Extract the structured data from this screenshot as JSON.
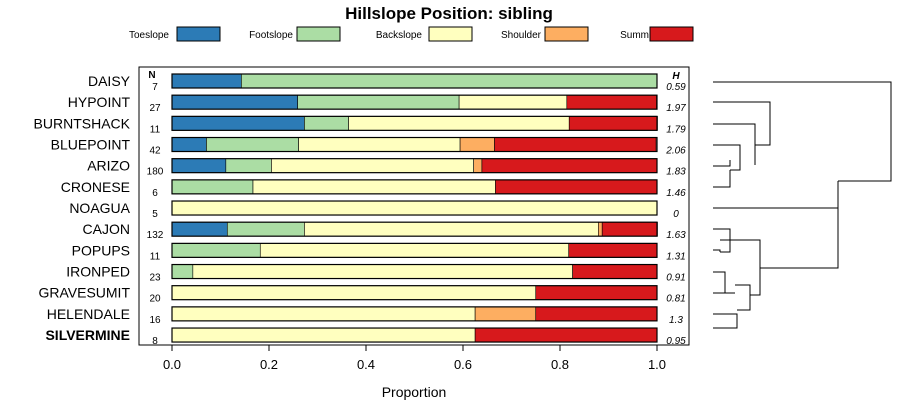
{
  "chart_data": {
    "type": "bar",
    "orientation": "horizontal",
    "stacked": true,
    "title": "Hillslope Position: sibling",
    "xlabel": "Proportion",
    "xlim": [
      0,
      1
    ],
    "xticks": [
      "0.0",
      "0.2",
      "0.4",
      "0.6",
      "0.8",
      "1.0"
    ],
    "n_header": "N",
    "h_header": "H",
    "legend_position": "top",
    "series": [
      {
        "name": "Toeslope",
        "color": "#2c7bb6"
      },
      {
        "name": "Footslope",
        "color": "#abdda4"
      },
      {
        "name": "Backslope",
        "color": "#ffffbf"
      },
      {
        "name": "Shoulder",
        "color": "#fdae61"
      },
      {
        "name": "Summit",
        "color": "#d7191c"
      }
    ],
    "categories": [
      "DAISY",
      "HYPOINT",
      "BURNTSHACK",
      "BLUEPOINT",
      "ARIZO",
      "CRONESE",
      "NOAGUA",
      "CAJON",
      "POPUPS",
      "IRONPED",
      "GRAVESUMIT",
      "HELENDALE",
      "SILVERMINE"
    ],
    "bold_category": "SILVERMINE",
    "n": [
      "7",
      "27",
      "11",
      "42",
      "180",
      "6",
      "5",
      "132",
      "11",
      "23",
      "20",
      "16",
      "8"
    ],
    "h": [
      "0.59",
      "1.97",
      "1.79",
      "2.06",
      "1.83",
      "1.46",
      "0",
      "1.63",
      "1.31",
      "0.91",
      "0.81",
      "1.3",
      "0.95"
    ],
    "proportions": [
      [
        0.143,
        0.857,
        0.0,
        0.0,
        0.0
      ],
      [
        0.259,
        0.333,
        0.222,
        0.0,
        0.185
      ],
      [
        0.273,
        0.091,
        0.455,
        0.0,
        0.182
      ],
      [
        0.071,
        0.19,
        0.333,
        0.071,
        0.333
      ],
      [
        0.111,
        0.094,
        0.417,
        0.017,
        0.361
      ],
      [
        0.0,
        0.167,
        0.5,
        0.0,
        0.333
      ],
      [
        0.0,
        0.0,
        1.0,
        0.0,
        0.0
      ],
      [
        0.114,
        0.159,
        0.606,
        0.008,
        0.114
      ],
      [
        0.0,
        0.182,
        0.636,
        0.0,
        0.182
      ],
      [
        0.0,
        0.043,
        0.783,
        0.0,
        0.174
      ],
      [
        0.0,
        0.0,
        0.75,
        0.0,
        0.25
      ],
      [
        0.0,
        0.0,
        0.625,
        0.125,
        0.25
      ],
      [
        0.0,
        0.0,
        0.625,
        0.0,
        0.375
      ]
    ]
  }
}
